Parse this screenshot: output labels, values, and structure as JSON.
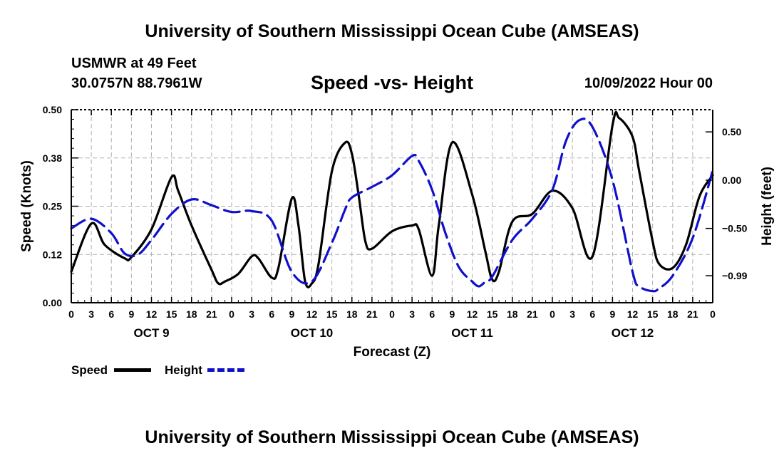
{
  "page": {
    "title_top": "University of Southern Mississippi Ocean Cube (AMSEAS)",
    "title_bottom": "University of Southern Mississippi Ocean Cube (AMSEAS)",
    "station": "USMWR at 49 Feet",
    "coords": "30.0757N  88.7961W",
    "subtitle": "Speed -vs- Height",
    "datetime": "10/09/2022 Hour 00"
  },
  "chart_data": {
    "type": "line",
    "title": "Speed -vs- Height",
    "xlabel": "Forecast (Z)",
    "ylabel_left": "Speed (Knots)",
    "ylabel_right": "Height (feet)",
    "x_range_hours": [
      0,
      96
    ],
    "ylim_left": [
      0,
      0.5
    ],
    "ylim_right": [
      -1.27,
      0.73
    ],
    "left_ticks": [
      {
        "value": 0,
        "label": "0.00"
      },
      {
        "value": 0.125,
        "label": "0.12"
      },
      {
        "value": 0.25,
        "label": "0.25"
      },
      {
        "value": 0.375,
        "label": "0.38"
      },
      {
        "value": 0.5,
        "label": "0.50"
      }
    ],
    "right_ticks": [
      {
        "value": 0.5,
        "label": "0.50"
      },
      {
        "value": 0.0,
        "label": "0.00"
      },
      {
        "value": -0.5,
        "label": "−0.50"
      },
      {
        "value": -0.99,
        "label": "−0.99"
      }
    ],
    "x_ticks": [
      {
        "h": 0,
        "label": "0"
      },
      {
        "h": 3,
        "label": "3"
      },
      {
        "h": 6,
        "label": "6"
      },
      {
        "h": 9,
        "label": "9"
      },
      {
        "h": 12,
        "label": "12"
      },
      {
        "h": 15,
        "label": "15"
      },
      {
        "h": 18,
        "label": "18"
      },
      {
        "h": 21,
        "label": "21"
      },
      {
        "h": 24,
        "label": "0"
      },
      {
        "h": 27,
        "label": "3"
      },
      {
        "h": 30,
        "label": "6"
      },
      {
        "h": 33,
        "label": "9"
      },
      {
        "h": 36,
        "label": "12"
      },
      {
        "h": 39,
        "label": "15"
      },
      {
        "h": 42,
        "label": "18"
      },
      {
        "h": 45,
        "label": "21"
      },
      {
        "h": 48,
        "label": "0"
      },
      {
        "h": 51,
        "label": "3"
      },
      {
        "h": 54,
        "label": "6"
      },
      {
        "h": 57,
        "label": "9"
      },
      {
        "h": 60,
        "label": "12"
      },
      {
        "h": 63,
        "label": "15"
      },
      {
        "h": 66,
        "label": "18"
      },
      {
        "h": 69,
        "label": "21"
      },
      {
        "h": 72,
        "label": "0"
      },
      {
        "h": 75,
        "label": "3"
      },
      {
        "h": 78,
        "label": "6"
      },
      {
        "h": 81,
        "label": "9"
      },
      {
        "h": 84,
        "label": "12"
      },
      {
        "h": 87,
        "label": "15"
      },
      {
        "h": 90,
        "label": "18"
      },
      {
        "h": 93,
        "label": "21"
      },
      {
        "h": 96,
        "label": "0"
      }
    ],
    "day_labels": [
      {
        "h": 12,
        "label": "OCT 9"
      },
      {
        "h": 36,
        "label": "OCT 10"
      },
      {
        "h": 60,
        "label": "OCT 11"
      },
      {
        "h": 84,
        "label": "OCT 12"
      }
    ],
    "series": [
      {
        "name": "Speed",
        "axis": "left",
        "color": "#000000",
        "dash": "solid",
        "points": [
          [
            0,
            0.08
          ],
          [
            3,
            0.205
          ],
          [
            5,
            0.15
          ],
          [
            8,
            0.115
          ],
          [
            9,
            0.118
          ],
          [
            12,
            0.19
          ],
          [
            15,
            0.325
          ],
          [
            16,
            0.29
          ],
          [
            18,
            0.2
          ],
          [
            21,
            0.085
          ],
          [
            22,
            0.05
          ],
          [
            23,
            0.055
          ],
          [
            25,
            0.075
          ],
          [
            27,
            0.12
          ],
          [
            28,
            0.115
          ],
          [
            30,
            0.065
          ],
          [
            31,
            0.09
          ],
          [
            33,
            0.27
          ],
          [
            34,
            0.2
          ],
          [
            35,
            0.055
          ],
          [
            36,
            0.05
          ],
          [
            37,
            0.1
          ],
          [
            39,
            0.34
          ],
          [
            41,
            0.415
          ],
          [
            42,
            0.385
          ],
          [
            43,
            0.28
          ],
          [
            44,
            0.16
          ],
          [
            45,
            0.14
          ],
          [
            48,
            0.185
          ],
          [
            51,
            0.2
          ],
          [
            52,
            0.19
          ],
          [
            54,
            0.07
          ],
          [
            55,
            0.2
          ],
          [
            57,
            0.415
          ],
          [
            60,
            0.28
          ],
          [
            62,
            0.13
          ],
          [
            63,
            0.06
          ],
          [
            64,
            0.08
          ],
          [
            66,
            0.21
          ],
          [
            69,
            0.23
          ],
          [
            72,
            0.29
          ],
          [
            75,
            0.245
          ],
          [
            78,
            0.12
          ],
          [
            81,
            0.46
          ],
          [
            82,
            0.478
          ],
          [
            84,
            0.43
          ],
          [
            85,
            0.34
          ],
          [
            87,
            0.16
          ],
          [
            88,
            0.1
          ],
          [
            90,
            0.09
          ],
          [
            92,
            0.15
          ],
          [
            94,
            0.275
          ],
          [
            96,
            0.33
          ]
        ]
      },
      {
        "name": "Height",
        "axis": "right",
        "color": "#1010cc",
        "dash": "dashed",
        "points": [
          [
            0,
            -0.5
          ],
          [
            3,
            -0.4
          ],
          [
            6,
            -0.55
          ],
          [
            8,
            -0.76
          ],
          [
            10,
            -0.77
          ],
          [
            12,
            -0.62
          ],
          [
            15,
            -0.35
          ],
          [
            18,
            -0.2
          ],
          [
            21,
            -0.26
          ],
          [
            24,
            -0.33
          ],
          [
            27,
            -0.32
          ],
          [
            30,
            -0.42
          ],
          [
            33,
            -0.95
          ],
          [
            36,
            -1.05
          ],
          [
            39,
            -0.65
          ],
          [
            41,
            -0.3
          ],
          [
            42,
            -0.18
          ],
          [
            45,
            -0.07
          ],
          [
            48,
            0.05
          ],
          [
            51,
            0.25
          ],
          [
            52,
            0.2
          ],
          [
            54,
            -0.1
          ],
          [
            56,
            -0.55
          ],
          [
            58,
            -0.9
          ],
          [
            60,
            -1.05
          ],
          [
            61,
            -1.1
          ],
          [
            62,
            -1.05
          ],
          [
            63,
            -1.0
          ],
          [
            66,
            -0.62
          ],
          [
            69,
            -0.4
          ],
          [
            72,
            -0.1
          ],
          [
            74,
            0.4
          ],
          [
            76,
            0.62
          ],
          [
            78,
            0.55
          ],
          [
            81,
            0.0
          ],
          [
            84,
            -0.95
          ],
          [
            85,
            -1.1
          ],
          [
            87,
            -1.15
          ],
          [
            88,
            -1.12
          ],
          [
            90,
            -0.99
          ],
          [
            93,
            -0.6
          ],
          [
            96,
            0.1
          ]
        ]
      }
    ],
    "legend": [
      {
        "name": "Speed",
        "color": "#000000",
        "dash": "solid"
      },
      {
        "name": "Height",
        "color": "#1010cc",
        "dash": "dashed"
      }
    ]
  }
}
